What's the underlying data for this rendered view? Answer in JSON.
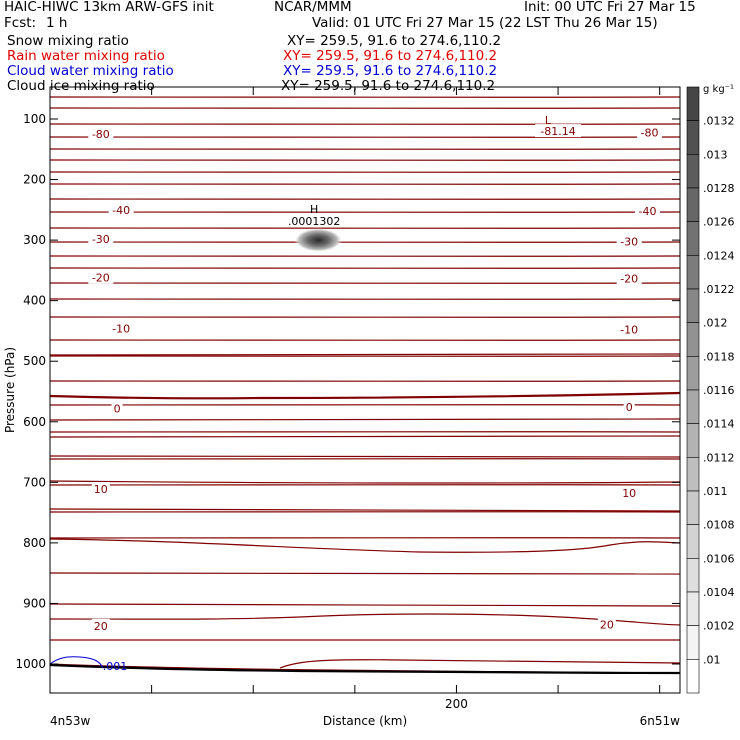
{
  "header": {
    "title_left": "HAIC-HIWC 13km ARW-GFS init",
    "org": "NCAR/MMM",
    "init": "Init: 00 UTC Fri 27 Mar 15",
    "fcst_label": "Fcst:",
    "fcst_value": "1 h",
    "valid": "Valid: 01 UTC Fri 27 Mar 15 (22 LST Thu 26 Mar 15)",
    "fields": [
      {
        "name": "Snow mixing ratio",
        "xy": "XY= 259.5, 91.6 to 274.6,110.2",
        "color": "#000000"
      },
      {
        "name": "Rain water mixing ratio",
        "xy": "XY= 259.5, 91.6 to 274.6,110.2",
        "color": "#e00000"
      },
      {
        "name": "Cloud water mixing ratio",
        "xy": "XY= 259.5, 91.6 to 274.6,110.2",
        "color": "#0000d0"
      },
      {
        "name": "Cloud ice mixing ratio",
        "xy": "XY= 259.5, 91.6 to 274.6,110.2",
        "color": "#000000"
      }
    ]
  },
  "chart_data": {
    "type": "contour",
    "xlabel": "Distance (km)",
    "ylabel": "Pressure (hPa)",
    "xlim": [
      0,
      310
    ],
    "ylim": [
      1050,
      80
    ],
    "x_ticks": [
      0,
      50,
      100,
      150,
      200,
      250,
      300
    ],
    "x_tick_labels": [
      "200"
    ],
    "x_tick_label_values": [
      200
    ],
    "y_ticks": [
      100,
      200,
      300,
      400,
      500,
      600,
      700,
      800,
      900,
      1000
    ],
    "y_tick_labels": [
      "100",
      "200",
      "300",
      "400",
      "500",
      "600",
      "700",
      "800",
      "900",
      "1000"
    ],
    "x_start_label": "4n53w",
    "x_end_label": "6n51w",
    "contour_color": "#800000",
    "temperature_labels": [
      {
        "value": "-80",
        "x": 25,
        "p": 125
      },
      {
        "value": "-80",
        "x": 295,
        "p": 122
      },
      {
        "value": "-81.14",
        "x": 250,
        "p": 120
      },
      {
        "value": "-40",
        "x": 35,
        "p": 250
      },
      {
        "value": "-40",
        "x": 294,
        "p": 252
      },
      {
        "value": "-30",
        "x": 25,
        "p": 298
      },
      {
        "value": "-30",
        "x": 285,
        "p": 302
      },
      {
        "value": "-20",
        "x": 25,
        "p": 362
      },
      {
        "value": "-20",
        "x": 285,
        "p": 363
      },
      {
        "value": "-10",
        "x": 35,
        "p": 446
      },
      {
        "value": "-10",
        "x": 285,
        "p": 448
      },
      {
        "value": "0",
        "x": 33,
        "p": 578
      },
      {
        "value": "0",
        "x": 285,
        "p": 576
      },
      {
        "value": "10",
        "x": 25,
        "p": 711
      },
      {
        "value": "10",
        "x": 285,
        "p": 718
      },
      {
        "value": "20",
        "x": 25,
        "p": 937
      },
      {
        "value": "20",
        "x": 274,
        "p": 935
      }
    ],
    "low_marker": {
      "label": "L",
      "x": 245,
      "p": 108
    },
    "high_marker": {
      "label": "H",
      "value": ".0001302",
      "x": 130,
      "p": 275
    },
    "blob_center": {
      "x": 132,
      "p": 300
    },
    "cloud_water_label": {
      "value": ".001",
      "x": 32,
      "p": 1003
    },
    "colorbar": {
      "unit": "g kg⁻¹",
      "levels": [
        ".0132",
        ".013",
        ".0128",
        ".0126",
        ".0124",
        ".0122",
        ".012",
        ".0118",
        ".0116",
        ".0114",
        ".0112",
        ".011",
        ".0108",
        ".0106",
        ".0104",
        ".0102",
        ".01"
      ]
    }
  }
}
